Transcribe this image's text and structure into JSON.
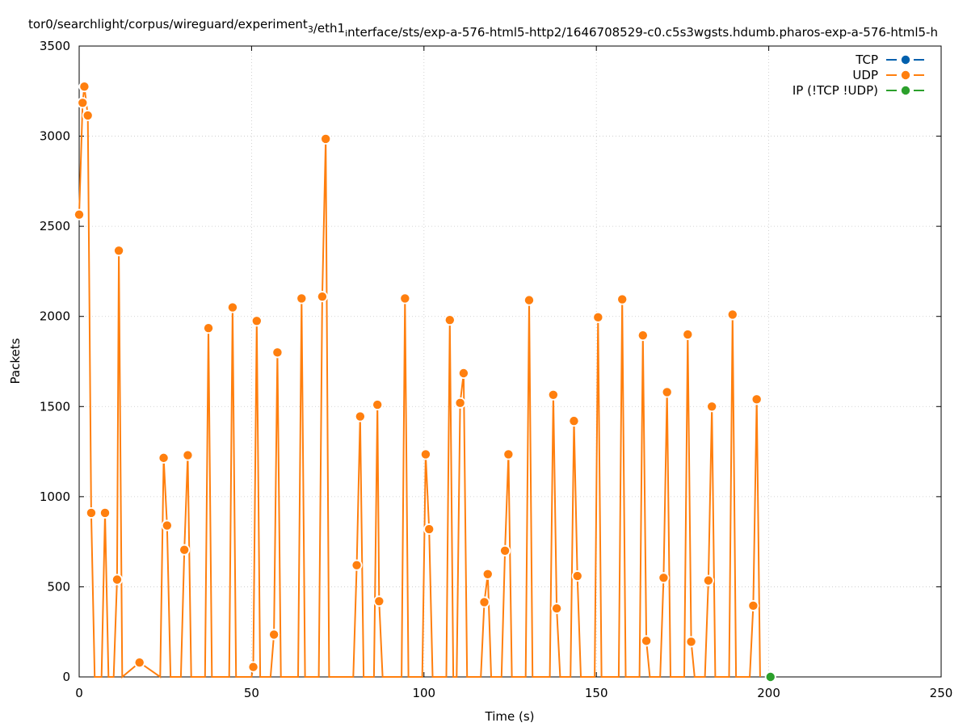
{
  "chart_data": {
    "type": "line",
    "title": "tor0/searchlight/corpus/wireguard/experiment_3/eth1_interface/sts/exp-a-576-html5-http2/1646708529-c0.c5s3wgsts.hdumb.pharos-exp-a-576-html5-h",
    "xlabel": "Time (s)",
    "ylabel": "Packets",
    "xlim": [
      0,
      250
    ],
    "ylim": [
      0,
      3500
    ],
    "x_ticks": [
      0,
      50,
      100,
      150,
      200,
      250
    ],
    "y_ticks": [
      0,
      500,
      1000,
      1500,
      2000,
      2500,
      3000,
      3500
    ],
    "grid": true,
    "legend_position": "top-right",
    "series": [
      {
        "name": "TCP",
        "color": "#0060ad",
        "points": []
      },
      {
        "name": "UDP",
        "color": "#ff7f0e",
        "points": [
          [
            0,
            2565
          ],
          [
            1,
            3185
          ],
          [
            1.5,
            3275
          ],
          [
            2.5,
            3115
          ],
          [
            3.5,
            910
          ],
          [
            4.5,
            0
          ],
          [
            6.5,
            0
          ],
          [
            7.5,
            910
          ],
          [
            8.5,
            0
          ],
          [
            10,
            0
          ],
          [
            11,
            540
          ],
          [
            11.5,
            2365
          ],
          [
            12.5,
            0
          ],
          [
            17.5,
            80
          ],
          [
            23.5,
            0
          ],
          [
            24.5,
            1215
          ],
          [
            25.5,
            840
          ],
          [
            26.5,
            0
          ],
          [
            29.5,
            0
          ],
          [
            30.5,
            705
          ],
          [
            31.5,
            1230
          ],
          [
            32.5,
            0
          ],
          [
            36.5,
            0
          ],
          [
            37.5,
            1935
          ],
          [
            38.5,
            0
          ],
          [
            43.5,
            0
          ],
          [
            44.5,
            2050
          ],
          [
            45.5,
            0
          ],
          [
            50,
            0
          ],
          [
            50.5,
            55
          ],
          [
            51.5,
            1975
          ],
          [
            52.5,
            0
          ],
          [
            55.5,
            0
          ],
          [
            56.5,
            235
          ],
          [
            57.5,
            1800
          ],
          [
            58.5,
            0
          ],
          [
            63.5,
            0
          ],
          [
            64.5,
            2100
          ],
          [
            65.5,
            0
          ],
          [
            69.5,
            0
          ],
          [
            70.5,
            2110
          ],
          [
            71.5,
            2985
          ],
          [
            72.5,
            0
          ],
          [
            79.5,
            0
          ],
          [
            80.5,
            620
          ],
          [
            81.5,
            1445
          ],
          [
            82.5,
            0
          ],
          [
            85.5,
            0
          ],
          [
            86.5,
            1510
          ],
          [
            87,
            420
          ],
          [
            88,
            0
          ],
          [
            93.5,
            0
          ],
          [
            94.5,
            2100
          ],
          [
            95.5,
            0
          ],
          [
            99.5,
            0
          ],
          [
            100.5,
            1235
          ],
          [
            101.5,
            820
          ],
          [
            102.5,
            0
          ],
          [
            106.5,
            0
          ],
          [
            107.5,
            1980
          ],
          [
            108.5,
            0
          ],
          [
            109.5,
            0
          ],
          [
            110.5,
            1520
          ],
          [
            111.5,
            1685
          ],
          [
            112.5,
            0
          ],
          [
            116.5,
            0
          ],
          [
            117.5,
            415
          ],
          [
            118.5,
            570
          ],
          [
            119.5,
            0
          ],
          [
            122.5,
            0
          ],
          [
            123.5,
            700
          ],
          [
            124.5,
            1235
          ],
          [
            125.5,
            0
          ],
          [
            129.5,
            0
          ],
          [
            130.5,
            2090
          ],
          [
            131.5,
            0
          ],
          [
            136.5,
            0
          ],
          [
            137.5,
            1565
          ],
          [
            138.5,
            380
          ],
          [
            139.5,
            0
          ],
          [
            142.5,
            0
          ],
          [
            143.5,
            1420
          ],
          [
            144.5,
            560
          ],
          [
            145.5,
            0
          ],
          [
            149.5,
            0
          ],
          [
            150.5,
            1995
          ],
          [
            151.5,
            0
          ],
          [
            156.5,
            0
          ],
          [
            157.5,
            2095
          ],
          [
            158.5,
            0
          ],
          [
            162.5,
            0
          ],
          [
            163.5,
            1895
          ],
          [
            164.5,
            200
          ],
          [
            165.5,
            0
          ],
          [
            168.5,
            0
          ],
          [
            169.5,
            550
          ],
          [
            170.5,
            1580
          ],
          [
            171.5,
            0
          ],
          [
            175.5,
            0
          ],
          [
            176.5,
            1900
          ],
          [
            177.5,
            195
          ],
          [
            178.5,
            0
          ],
          [
            181.5,
            0
          ],
          [
            182.5,
            535
          ],
          [
            183.5,
            1500
          ],
          [
            184.5,
            0
          ],
          [
            188.5,
            0
          ],
          [
            189.5,
            2010
          ],
          [
            190.5,
            0
          ],
          [
            194.5,
            0
          ],
          [
            195.5,
            395
          ],
          [
            196.5,
            1540
          ],
          [
            197.5,
            0
          ]
        ]
      },
      {
        "name": "IP (!TCP  !UDP)",
        "color": "#2ca02c",
        "points": [
          [
            200.5,
            0
          ]
        ]
      }
    ]
  }
}
